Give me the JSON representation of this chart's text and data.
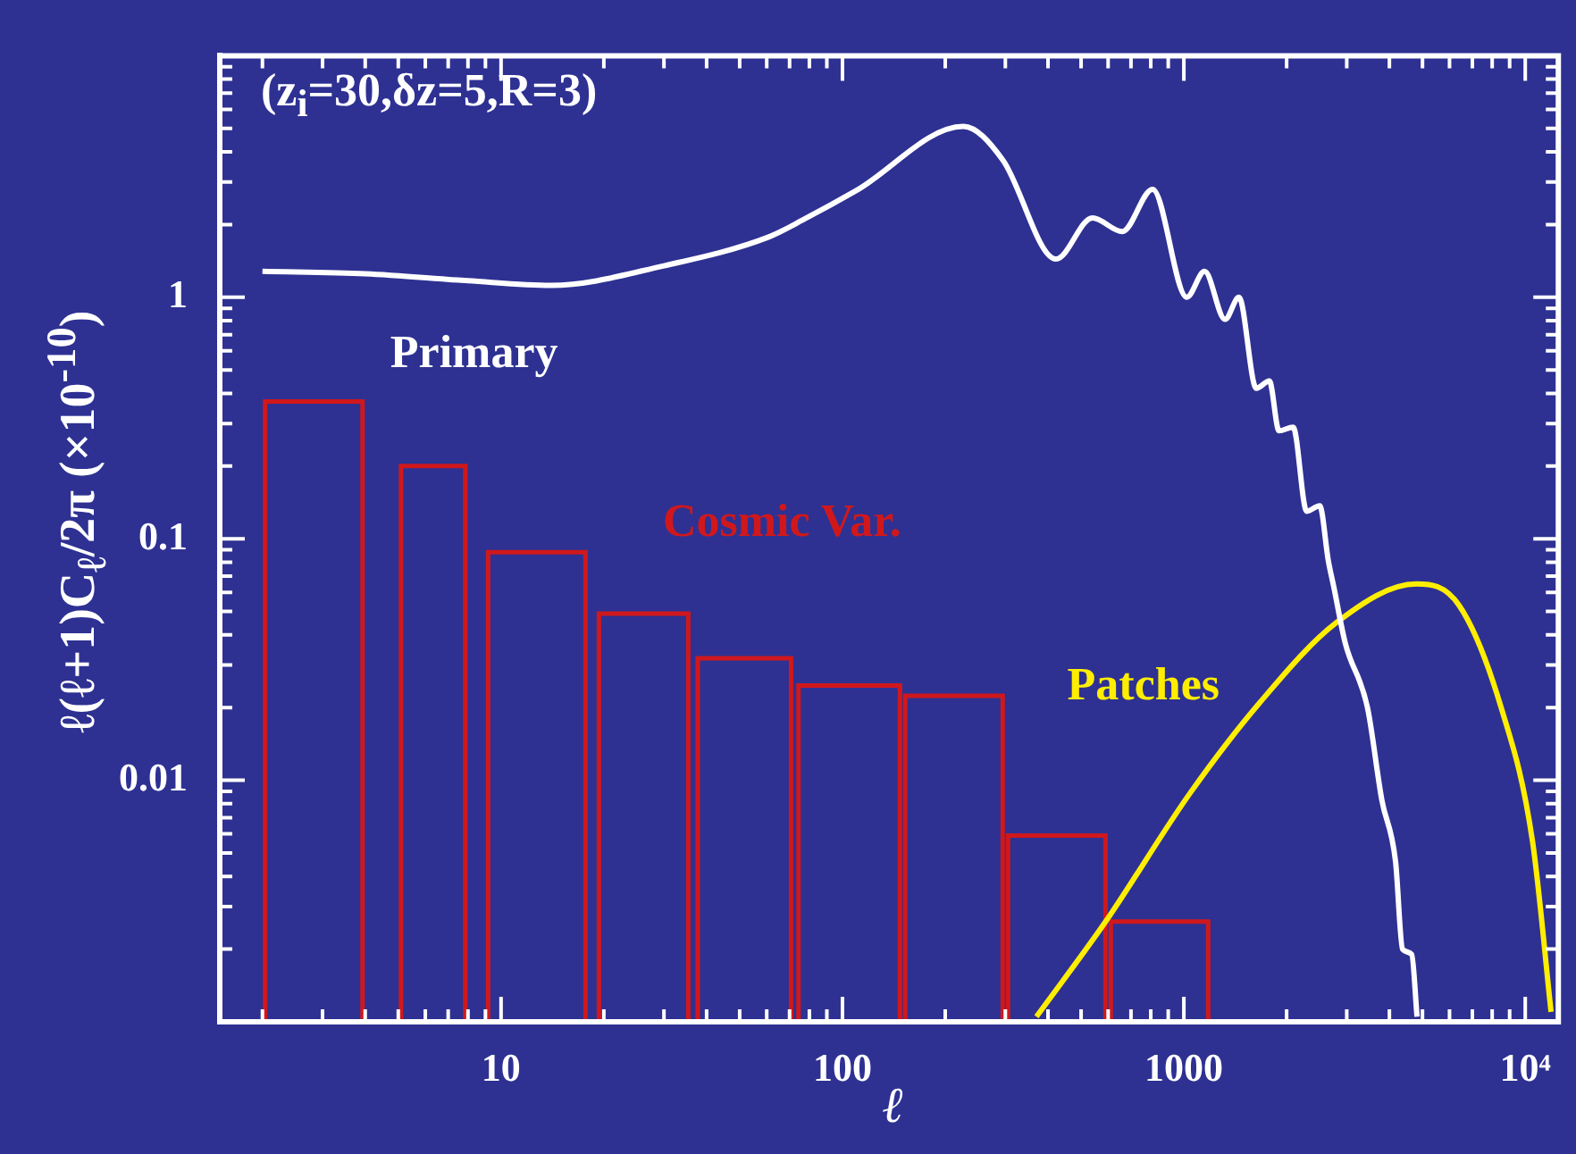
{
  "chart_data": {
    "type": "histogram",
    "xlabel": "ℓ",
    "ylabel": "ℓ(ℓ+1)C$_{ℓ}$/2π  (×10$^{-10}$)",
    "annotations": [
      "(z$_{i}$=30,δz=5,R=3)"
    ],
    "log": "xy",
    "legend": false,
    "xlim": [
      1.5,
      12500
    ],
    "xticks": [
      {
        "value": 2,
        "label": null
      },
      {
        "value": 3,
        "label": null
      },
      {
        "value": 4,
        "label": null
      },
      {
        "value": 5,
        "label": null
      },
      {
        "value": 6,
        "label": null
      },
      {
        "value": 7,
        "label": null
      },
      {
        "value": 8,
        "label": null
      },
      {
        "value": 9,
        "label": null
      },
      10,
      {
        "value": 20,
        "label": null
      },
      {
        "value": 30,
        "label": null
      },
      {
        "value": 40,
        "label": null
      },
      {
        "value": 50,
        "label": null
      },
      {
        "value": 60,
        "label": null
      },
      {
        "value": 70,
        "label": null
      },
      {
        "value": 80,
        "label": null
      },
      {
        "value": 90,
        "label": null
      },
      100,
      {
        "value": 200,
        "label": null
      },
      {
        "value": 300,
        "label": null
      },
      {
        "value": 400,
        "label": null
      },
      {
        "value": 500,
        "label": null
      },
      {
        "value": 600,
        "label": null
      },
      {
        "value": 700,
        "label": null
      },
      {
        "value": 800,
        "label": null
      },
      {
        "value": 900,
        "label": null
      },
      1000,
      {
        "value": 2000,
        "label": null
      },
      {
        "value": 3000,
        "label": null
      },
      {
        "value": 4000,
        "label": null
      },
      {
        "value": 5000,
        "label": null
      },
      {
        "value": 6000,
        "label": null
      },
      {
        "value": 7000,
        "label": null
      },
      {
        "value": 8000,
        "label": null
      },
      {
        "value": 9000,
        "label": null
      },
      {
        "value": 10000,
        "label": "10⁴"
      }
    ],
    "ylim": [
      0.001,
      10
    ],
    "yticks": [
      {
        "value": 0.002,
        "label": null
      },
      {
        "value": 0.003,
        "label": null
      },
      {
        "value": 0.004,
        "label": null
      },
      {
        "value": 0.005,
        "label": null
      },
      {
        "value": 0.006,
        "label": null
      },
      {
        "value": 0.007,
        "label": null
      },
      {
        "value": 0.008,
        "label": null
      },
      {
        "value": 0.009,
        "label": null
      },
      0.01,
      {
        "value": 0.02,
        "label": null
      },
      {
        "value": 0.03,
        "label": null
      },
      {
        "value": 0.04,
        "label": null
      },
      {
        "value": 0.05,
        "label": null
      },
      {
        "value": 0.06,
        "label": null
      },
      {
        "value": 0.07,
        "label": null
      },
      {
        "value": 0.08,
        "label": null
      },
      {
        "value": 0.09,
        "label": null
      },
      0.1,
      {
        "value": 0.2,
        "label": null
      },
      {
        "value": 0.3,
        "label": null
      },
      {
        "value": 0.4,
        "label": null
      },
      {
        "value": 0.5,
        "label": null
      },
      {
        "value": 0.6,
        "label": null
      },
      {
        "value": 0.7,
        "label": null
      },
      {
        "value": 0.8,
        "label": null
      },
      {
        "value": 0.9,
        "label": null
      },
      1,
      {
        "value": 2,
        "label": null
      },
      {
        "value": 3,
        "label": null
      },
      {
        "value": 4,
        "label": null
      },
      {
        "value": 5,
        "label": null
      },
      {
        "value": 6,
        "label": null
      },
      {
        "value": 7,
        "label": null
      },
      {
        "value": 8,
        "label": null
      },
      {
        "value": 9,
        "label": null
      }
    ],
    "series": [
      {
        "name": "Cosmic Var.",
        "type": "histogram",
        "color": "#d0181c",
        "bins": [
          2,
          4,
          5,
          8,
          9,
          18,
          19,
          36,
          37,
          72,
          73,
          150,
          300,
          600,
          1200
        ],
        "values": [
          0.37,
          null,
          0.2,
          null,
          0.088,
          null,
          0.049,
          null,
          0.032,
          null,
          0.0247,
          0.0224,
          0.0059,
          0.0026
        ]
      },
      {
        "name": "Primary",
        "type": "line",
        "color": "#ffffff",
        "x": [
          2,
          4,
          8,
          14,
          30,
          61,
          77,
          110,
          226,
          295,
          422,
          540,
          660,
          810,
          1020,
          1150,
          1320,
          1450,
          1630,
          1780,
          1900,
          2090,
          2290,
          2500,
          2650,
          2750,
          2970,
          3450,
          3800,
          4170,
          4370,
          4650,
          4820
        ],
        "values": [
          1.28,
          1.25,
          1.17,
          1.12,
          1.35,
          1.78,
          2.1,
          2.77,
          5.1,
          3.7,
          1.44,
          2.13,
          1.87,
          2.8,
          1.0,
          1.28,
          0.81,
          1.0,
          0.42,
          0.45,
          0.28,
          0.29,
          0.13,
          0.137,
          0.081,
          0.063,
          0.037,
          0.02,
          0.0083,
          0.0046,
          0.002,
          0.0019,
          0.00105
        ]
      },
      {
        "name": "Patches",
        "type": "line",
        "color": "#ffee00",
        "x": [
          370,
          590,
          1040,
          1670,
          2800,
          4800,
          6400,
          8500,
          10500,
          11900
        ],
        "values": [
          0.00105,
          0.0026,
          0.0088,
          0.021,
          0.045,
          0.065,
          0.053,
          0.02,
          0.0056,
          0.0011
        ]
      }
    ]
  }
}
